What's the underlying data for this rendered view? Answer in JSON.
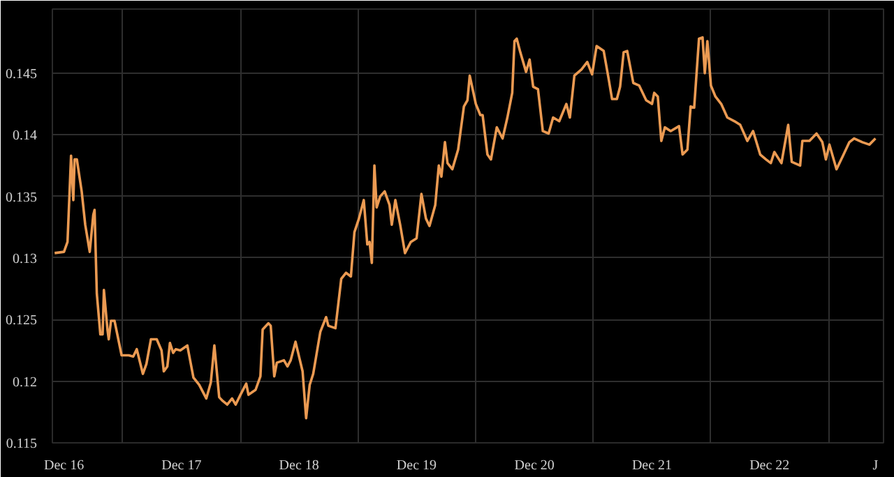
{
  "chart_data": {
    "type": "line",
    "x": [
      "2016-11-02",
      "2016-12-01",
      "2016-12-12",
      "2016-12-23",
      "2016-12-30",
      "2017-01-03",
      "2017-01-10",
      "2017-01-25",
      "2017-02-05",
      "2017-02-19",
      "2017-03-02",
      "2017-03-06",
      "2017-03-13",
      "2017-03-24",
      "2017-03-31",
      "2017-04-04",
      "2017-04-15",
      "2017-04-19",
      "2017-04-26",
      "2017-05-07",
      "2017-05-29",
      "2017-06-20",
      "2017-07-04",
      "2017-07-15",
      "2017-08-03",
      "2017-08-14",
      "2017-08-28",
      "2017-09-15",
      "2017-09-30",
      "2017-10-07",
      "2017-10-18",
      "2017-10-26",
      "2017-11-05",
      "2017-11-13",
      "2017-11-27",
      "2017-12-19",
      "2018-01-07",
      "2018-01-25",
      "2018-02-16",
      "2018-03-02",
      "2018-03-13",
      "2018-03-28",
      "2018-04-08",
      "2018-04-22",
      "2018-05-07",
      "2018-05-18",
      "2018-06-02",
      "2018-06-20",
      "2018-06-27",
      "2018-07-19",
      "2018-08-03",
      "2018-08-10",
      "2018-08-28",
      "2018-09-04",
      "2018-09-15",
      "2018-09-23",
      "2018-10-15",
      "2018-10-26",
      "2018-11-05",
      "2018-11-20",
      "2018-12-01",
      "2018-12-12",
      "2018-12-23",
      "2019-01-03",
      "2019-01-14",
      "2019-02-05",
      "2019-02-23",
      "2019-03-02",
      "2019-03-24",
      "2019-04-11",
      "2019-04-26",
      "2019-05-11",
      "2019-05-22",
      "2019-06-05",
      "2019-06-20",
      "2019-07-01",
      "2019-07-08",
      "2019-07-15",
      "2019-07-23",
      "2019-07-30",
      "2019-08-10",
      "2019-08-24",
      "2019-09-08",
      "2019-09-15",
      "2019-09-26",
      "2019-10-11",
      "2019-10-26",
      "2019-11-13",
      "2019-12-01",
      "2019-12-16",
      "2019-12-30",
      "2020-01-10",
      "2020-01-28",
      "2020-02-08",
      "2020-02-16",
      "2020-02-27",
      "2020-03-06",
      "2020-03-21",
      "2020-04-08",
      "2020-04-26",
      "2020-05-07",
      "2020-05-14",
      "2020-06-02",
      "2020-06-16",
      "2020-06-23",
      "2020-07-08",
      "2020-07-19",
      "2020-08-06",
      "2020-08-24",
      "2020-09-08",
      "2020-09-23",
      "2020-09-30",
      "2020-10-07",
      "2020-10-18",
      "2020-11-05",
      "2020-11-16",
      "2020-11-27",
      "2020-12-12",
      "2020-12-27",
      "2021-01-14",
      "2021-01-28",
      "2021-02-16",
      "2021-03-10",
      "2021-03-21",
      "2021-04-04",
      "2021-04-26",
      "2021-05-14",
      "2021-05-29",
      "2021-06-12",
      "2021-07-04",
      "2021-07-19",
      "2021-07-30",
      "2021-08-14",
      "2021-08-24",
      "2021-09-04",
      "2021-09-15",
      "2021-10-04",
      "2021-10-22",
      "2021-11-13",
      "2021-12-01",
      "2021-12-08",
      "2021-12-19",
      "2021-12-30",
      "2022-01-10",
      "2022-01-28",
      "2022-02-23",
      "2022-03-06",
      "2022-03-21",
      "2022-03-31",
      "2022-04-11",
      "2022-04-26",
      "2022-05-07",
      "2022-05-14",
      "2022-05-22",
      "2022-06-02",
      "2022-06-16",
      "2022-07-04",
      "2022-07-23",
      "2022-08-14",
      "2022-09-01",
      "2022-09-23",
      "2022-10-11",
      "2022-11-02",
      "2022-11-20",
      "2022-12-05",
      "2022-12-16",
      "2023-01-07",
      "2023-01-28",
      "2023-02-08",
      "2023-03-06",
      "2023-03-13",
      "2023-04-04",
      "2023-04-26",
      "2023-05-14",
      "2023-05-25",
      "2023-06-05",
      "2023-06-27",
      "2023-07-19",
      "2023-08-06",
      "2023-08-21",
      "2023-09-15",
      "2023-10-07",
      "2023-10-26"
    ],
    "series": [
      {
        "color": "#eb9a52",
        "values": [
          0.1304,
          0.1305,
          0.1313,
          0.1383,
          0.1347,
          0.138,
          0.138,
          0.1354,
          0.1327,
          0.1305,
          0.1335,
          0.1339,
          0.1271,
          0.1238,
          0.1238,
          0.1274,
          0.1242,
          0.1234,
          0.1249,
          0.1249,
          0.1221,
          0.1221,
          0.122,
          0.1226,
          0.1206,
          0.1214,
          0.1234,
          0.1234,
          0.1225,
          0.1208,
          0.1212,
          0.1231,
          0.1223,
          0.1226,
          0.1225,
          0.1229,
          0.1203,
          0.1197,
          0.1186,
          0.1199,
          0.1229,
          0.1187,
          0.1184,
          0.1181,
          0.1186,
          0.1181,
          0.1189,
          0.1198,
          0.1189,
          0.1193,
          0.1204,
          0.1242,
          0.1247,
          0.1245,
          0.1204,
          0.1215,
          0.1217,
          0.1212,
          0.1217,
          0.1232,
          0.122,
          0.1208,
          0.117,
          0.1197,
          0.1206,
          0.124,
          0.1252,
          0.1245,
          0.1243,
          0.1283,
          0.1288,
          0.1285,
          0.1321,
          0.1332,
          0.1347,
          0.1311,
          0.1313,
          0.1296,
          0.1375,
          0.1341,
          0.135,
          0.1354,
          0.1343,
          0.1327,
          0.1347,
          0.1327,
          0.1304,
          0.1313,
          0.1316,
          0.1352,
          0.1332,
          0.1326,
          0.1343,
          0.1375,
          0.1366,
          0.1394,
          0.1377,
          0.1372,
          0.1388,
          0.1423,
          0.1428,
          0.1448,
          0.1425,
          0.1416,
          0.1416,
          0.1384,
          0.138,
          0.1406,
          0.1397,
          0.1414,
          0.1434,
          0.1476,
          0.1478,
          0.1467,
          0.1451,
          0.1461,
          0.1439,
          0.1437,
          0.1403,
          0.1401,
          0.1414,
          0.1411,
          0.1425,
          0.1414,
          0.1448,
          0.1453,
          0.1459,
          0.1449,
          0.1472,
          0.1468,
          0.1446,
          0.1429,
          0.1429,
          0.1439,
          0.1467,
          0.1468,
          0.1442,
          0.144,
          0.1428,
          0.1425,
          0.1434,
          0.1431,
          0.1395,
          0.1406,
          0.1403,
          0.1407,
          0.1384,
          0.1388,
          0.1423,
          0.1422,
          0.1478,
          0.1479,
          0.145,
          0.1476,
          0.144,
          0.1431,
          0.1425,
          0.1414,
          0.1411,
          0.1408,
          0.1395,
          0.1403,
          0.1384,
          0.138,
          0.1377,
          0.1386,
          0.1377,
          0.1408,
          0.1378,
          0.1375,
          0.1395,
          0.1395,
          0.1401,
          0.1394,
          0.138,
          0.1392,
          0.1372,
          0.1384,
          0.1394,
          0.1397,
          0.1394,
          0.1392,
          0.1397
        ]
      }
    ],
    "xlim": [
      "2016-10-26",
      "2023-11-20"
    ],
    "xticks": [
      {
        "value": "2016-12-01",
        "label": "Dec 16"
      },
      {
        "value": "2017-06-02",
        "label": null
      },
      {
        "value": "2017-12-01",
        "label": "Dec 17"
      },
      {
        "value": "2018-06-02",
        "label": null
      },
      {
        "value": "2018-12-01",
        "label": "Dec 18"
      },
      {
        "value": "2019-06-02",
        "label": null
      },
      {
        "value": "2019-12-01",
        "label": "Dec 19"
      },
      {
        "value": "2020-06-02",
        "label": null
      },
      {
        "value": "2020-12-01",
        "label": "Dec 20"
      },
      {
        "value": "2021-06-02",
        "label": null
      },
      {
        "value": "2021-12-01",
        "label": "Dec 21"
      },
      {
        "value": "2022-06-02",
        "label": null
      },
      {
        "value": "2022-12-01",
        "label": "Dec 22"
      },
      {
        "value": "2023-06-02",
        "label": null
      },
      {
        "value": "2023-10-26",
        "label": "J"
      }
    ],
    "ylim": [
      0.115,
      0.1502
    ],
    "yticks": [
      0.115,
      0.12,
      0.125,
      0.13,
      0.135,
      0.14,
      0.145
    ],
    "grid": true
  }
}
